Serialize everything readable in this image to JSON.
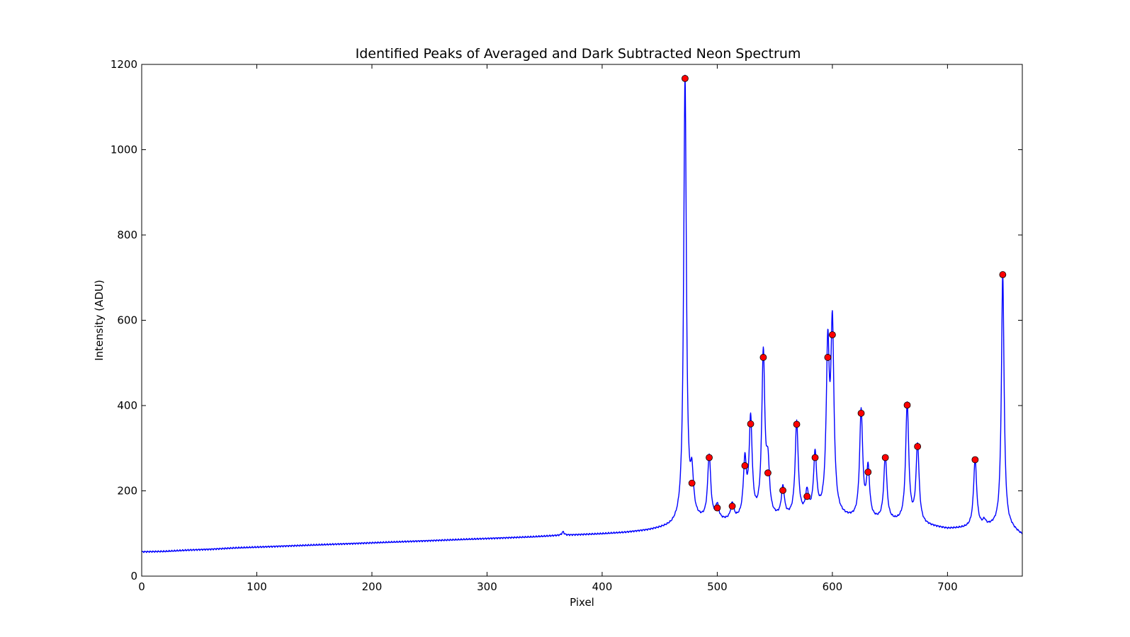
{
  "chart_data": {
    "type": "line",
    "title": "Identified Peaks of Averaged and Dark Subtracted Neon Spectrum",
    "xlabel": "Pixel",
    "ylabel": "Intensity (ADU)",
    "xlim": [
      0,
      765
    ],
    "ylim": [
      0,
      1200
    ],
    "xticks": [
      0,
      100,
      200,
      300,
      400,
      500,
      600,
      700
    ],
    "yticks": [
      0,
      200,
      400,
      600,
      800,
      1000,
      1200
    ],
    "grid": false,
    "colors": {
      "line": "#0000ff",
      "marker": "#ff0000",
      "marker_edge": "#000000"
    },
    "baseline": [
      [
        0,
        57
      ],
      [
        20,
        58
      ],
      [
        40,
        61
      ],
      [
        60,
        63
      ],
      [
        80,
        66
      ],
      [
        100,
        68
      ],
      [
        120,
        70
      ],
      [
        140,
        72
      ],
      [
        160,
        74
      ],
      [
        180,
        76
      ],
      [
        200,
        78
      ],
      [
        220,
        80
      ],
      [
        240,
        82
      ],
      [
        260,
        84
      ],
      [
        280,
        86
      ],
      [
        300,
        88
      ],
      [
        320,
        90
      ],
      [
        340,
        92
      ],
      [
        360,
        95
      ],
      [
        380,
        97
      ],
      [
        400,
        99
      ],
      [
        420,
        102
      ],
      [
        440,
        107
      ],
      [
        460,
        115
      ],
      [
        470,
        125
      ],
      [
        480,
        127
      ],
      [
        500,
        126
      ],
      [
        520,
        128
      ],
      [
        540,
        130
      ],
      [
        560,
        132
      ],
      [
        580,
        136
      ],
      [
        600,
        138
      ],
      [
        620,
        130
      ],
      [
        640,
        127
      ],
      [
        660,
        124
      ],
      [
        680,
        118
      ],
      [
        700,
        110
      ],
      [
        720,
        112
      ],
      [
        740,
        115
      ],
      [
        755,
        110
      ],
      [
        765,
        95
      ]
    ],
    "bumps": [
      {
        "x": 366,
        "height": 8,
        "width": 1.2
      },
      {
        "x": 732,
        "height": 12,
        "width": 1.5
      }
    ],
    "peaks": [
      {
        "x": 472,
        "y": 1167
      },
      {
        "x": 478,
        "y": 218
      },
      {
        "x": 493,
        "y": 278
      },
      {
        "x": 500,
        "y": 160
      },
      {
        "x": 513,
        "y": 164
      },
      {
        "x": 524,
        "y": 259
      },
      {
        "x": 529,
        "y": 357
      },
      {
        "x": 540,
        "y": 513
      },
      {
        "x": 544,
        "y": 242
      },
      {
        "x": 557,
        "y": 201
      },
      {
        "x": 569,
        "y": 356
      },
      {
        "x": 578,
        "y": 187
      },
      {
        "x": 585,
        "y": 278
      },
      {
        "x": 596,
        "y": 513
      },
      {
        "x": 600,
        "y": 566
      },
      {
        "x": 625,
        "y": 382
      },
      {
        "x": 631,
        "y": 244
      },
      {
        "x": 646,
        "y": 278
      },
      {
        "x": 665,
        "y": 401
      },
      {
        "x": 674,
        "y": 304
      },
      {
        "x": 724,
        "y": 273
      },
      {
        "x": 748,
        "y": 707
      }
    ]
  }
}
